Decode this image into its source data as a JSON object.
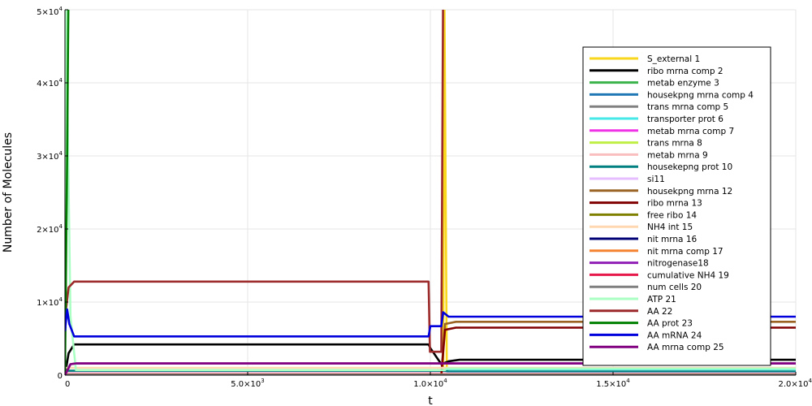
{
  "chart_data": {
    "type": "line",
    "title": "",
    "xlabel": "t",
    "ylabel": "Number of Molecules",
    "xlim": [
      0,
      20000
    ],
    "ylim": [
      0,
      50000
    ],
    "grid": true,
    "legend_position": "top-right",
    "x_ticks": [
      {
        "value": 0,
        "mantissa": "0",
        "exponent": ""
      },
      {
        "value": 5000,
        "mantissa": "5.0×10",
        "exponent": "3"
      },
      {
        "value": 10000,
        "mantissa": "1.0×10",
        "exponent": "4"
      },
      {
        "value": 15000,
        "mantissa": "1.5×10",
        "exponent": "4"
      },
      {
        "value": 20000,
        "mantissa": "2.0×10",
        "exponent": "4"
      }
    ],
    "y_ticks": [
      {
        "value": 0,
        "mantissa": "0",
        "exponent": ""
      },
      {
        "value": 10000,
        "mantissa": "1×10",
        "exponent": "4"
      },
      {
        "value": 20000,
        "mantissa": "2×10",
        "exponent": "4"
      },
      {
        "value": 30000,
        "mantissa": "3×10",
        "exponent": "4"
      },
      {
        "value": 40000,
        "mantissa": "4×10",
        "exponent": "4"
      },
      {
        "value": 50000,
        "mantissa": "5×10",
        "exponent": "4"
      }
    ],
    "series": [
      {
        "name": "S_external 1",
        "color": "#f9d71c",
        "x": [
          0,
          10350,
          10380,
          10450,
          20000
        ],
        "y": [
          0,
          0,
          55000,
          0,
          0
        ]
      },
      {
        "name": "ribo mrna comp 2",
        "color": "#000000",
        "x": [
          0,
          100,
          250,
          9950,
          10000,
          10300,
          10500,
          10800,
          20000
        ],
        "y": [
          0,
          3000,
          4200,
          4200,
          3700,
          1500,
          1900,
          2100,
          2100
        ]
      },
      {
        "name": "metab enzyme 3",
        "color": "#3cb44b",
        "x": [
          0,
          10000,
          10400,
          20000
        ],
        "y": [
          300,
          300,
          200,
          200
        ]
      },
      {
        "name": "housekpng mrna comp 4",
        "color": "#1f77b4",
        "x": [
          0,
          20000
        ],
        "y": [
          150,
          150
        ]
      },
      {
        "name": "trans mrna comp 5",
        "color": "#808080",
        "x": [
          0,
          20000
        ],
        "y": [
          350,
          350
        ]
      },
      {
        "name": "transporter prot 6",
        "color": "#46e8e8",
        "x": [
          0,
          10400,
          10500,
          20000
        ],
        "y": [
          500,
          500,
          800,
          800
        ]
      },
      {
        "name": "metab mrna comp 7",
        "color": "#f032e6",
        "x": [
          0,
          20000
        ],
        "y": [
          100,
          100
        ]
      },
      {
        "name": "trans mrna 8",
        "color": "#bfef45",
        "x": [
          0,
          20000
        ],
        "y": [
          200,
          200
        ]
      },
      {
        "name": "metab mrna 9",
        "color": "#fabebe",
        "x": [
          0,
          20000
        ],
        "y": [
          400,
          400
        ]
      },
      {
        "name": "housekepng prot 10",
        "color": "#008080",
        "x": [
          0,
          10400,
          10500,
          20000
        ],
        "y": [
          600,
          600,
          500,
          500
        ]
      },
      {
        "name": "si11",
        "color": "#e6beff",
        "x": [
          0,
          20000
        ],
        "y": [
          250,
          250
        ]
      },
      {
        "name": "housekpng mrna 12",
        "color": "#9a6324",
        "x": [
          0,
          10300,
          10400,
          10700,
          20000
        ],
        "y": [
          0,
          0,
          7000,
          7300,
          7300
        ]
      },
      {
        "name": "ribo mrna 13",
        "color": "#800000",
        "x": [
          0,
          10300,
          10400,
          10700,
          20000
        ],
        "y": [
          0,
          0,
          6200,
          6500,
          6500
        ]
      },
      {
        "name": "free ribo 14",
        "color": "#808000",
        "x": [
          0,
          20000
        ],
        "y": [
          50,
          50
        ]
      },
      {
        "name": "NH4 int 15",
        "color": "#ffd8b1",
        "x": [
          0,
          20000
        ],
        "y": [
          1000,
          1000
        ]
      },
      {
        "name": "nit mrna 16",
        "color": "#000075",
        "x": [
          0,
          20000
        ],
        "y": [
          80,
          80
        ]
      },
      {
        "name": "nit mrna comp 17",
        "color": "#f58231",
        "x": [
          0,
          20000
        ],
        "y": [
          120,
          120
        ]
      },
      {
        "name": "nitrogenase18",
        "color": "#911eb4",
        "x": [
          0,
          150,
          300,
          9950,
          10000,
          20000
        ],
        "y": [
          0,
          1500,
          1600,
          1600,
          1600,
          1600
        ]
      },
      {
        "name": "cumulative NH4 19",
        "color": "#e6194b",
        "x": [
          0,
          20000
        ],
        "y": [
          30,
          30
        ]
      },
      {
        "name": "num cells 20",
        "color": "#7f7f7f",
        "x": [
          0,
          20000
        ],
        "y": [
          60,
          60
        ]
      },
      {
        "name": "ATP 21",
        "color": "#aaffc3",
        "x": [
          0,
          20,
          60,
          150,
          300,
          10400,
          10450,
          20000
        ],
        "y": [
          0,
          52000,
          40000,
          8000,
          700,
          700,
          900,
          900
        ]
      },
      {
        "name": "AA 22",
        "color": "#9c2a2a",
        "x": [
          0,
          30,
          100,
          250,
          9950,
          9990,
          10300,
          10350,
          20000
        ],
        "y": [
          20000,
          9000,
          12000,
          12800,
          12800,
          3200,
          3200,
          55000,
          55000
        ]
      },
      {
        "name": "AA prot 23",
        "color": "#008000",
        "x": [
          0,
          60,
          100,
          150,
          20000
        ],
        "y": [
          0,
          30000,
          55000,
          55000,
          55000
        ]
      },
      {
        "name": "AA mRNA 24",
        "color": "#0000dd",
        "x": [
          0,
          60,
          120,
          250,
          9950,
          10000,
          10300,
          10350,
          10500,
          20000
        ],
        "y": [
          6000,
          9000,
          7000,
          5300,
          5300,
          6700,
          6700,
          8600,
          8000,
          8000
        ]
      },
      {
        "name": "AA mrna comp 25",
        "color": "#800080",
        "x": [
          0,
          150,
          300,
          10000,
          20000
        ],
        "y": [
          0,
          1500,
          1600,
          1600,
          1600
        ]
      }
    ]
  }
}
